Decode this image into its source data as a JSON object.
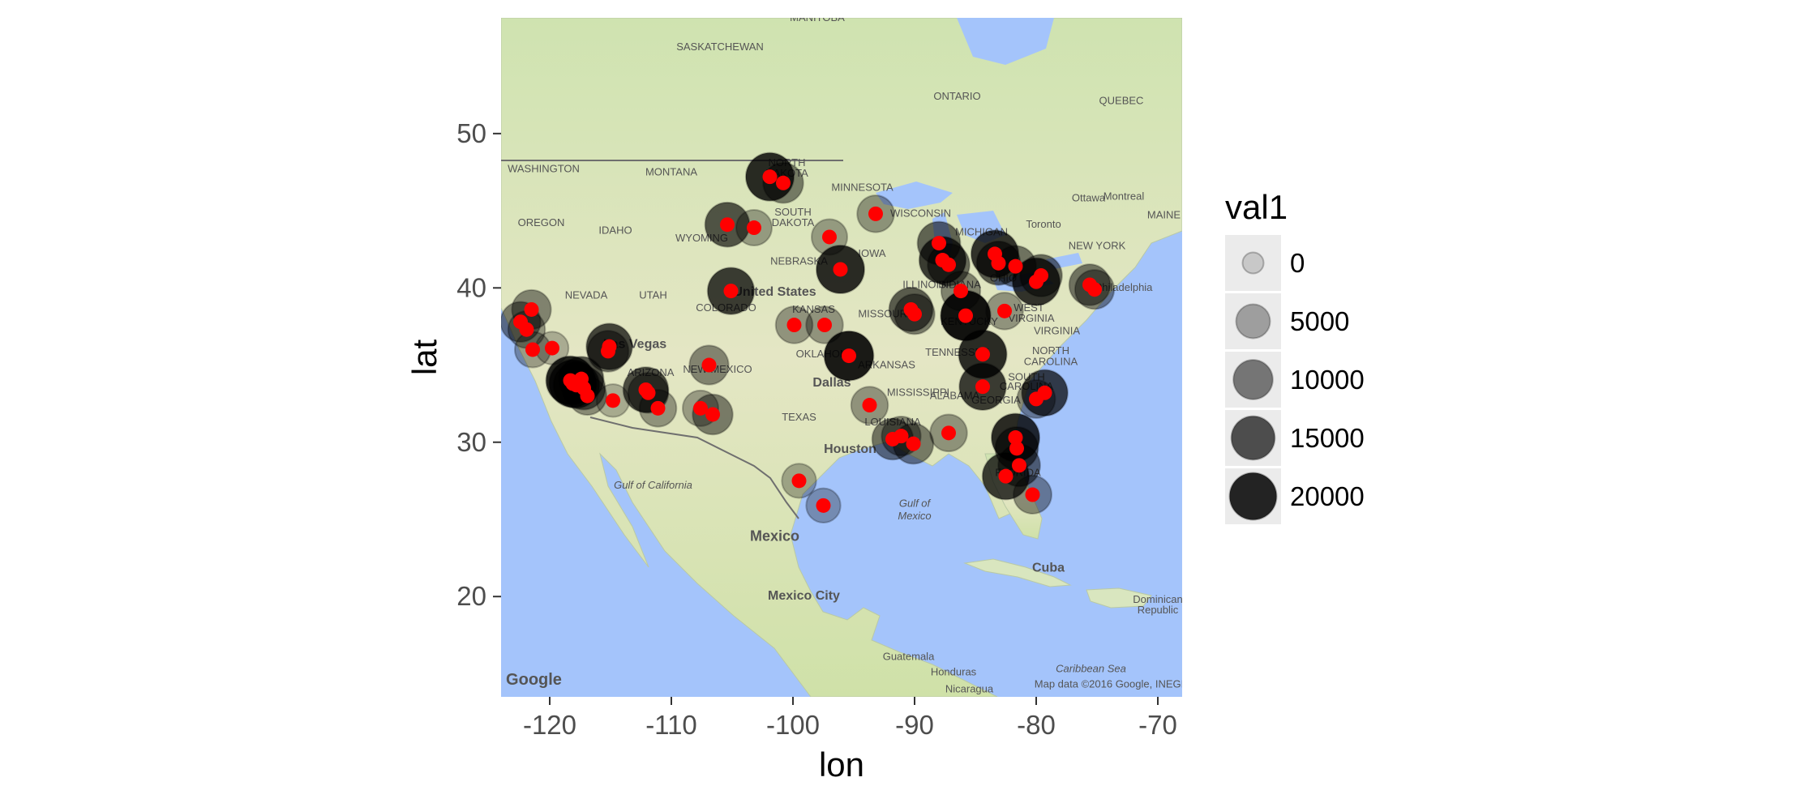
{
  "chart_data": {
    "type": "scatter",
    "title": "",
    "xlabel": "lon",
    "ylabel": "lat",
    "xlim": [
      -124,
      -68
    ],
    "ylim": [
      13.5,
      57.5
    ],
    "x_ticks": [
      -120,
      -110,
      -100,
      -90,
      -80,
      -70
    ],
    "x_tick_labels": [
      "-120",
      "-110",
      "-100",
      "-90",
      "-80",
      "-70"
    ],
    "y_ticks": [
      20,
      30,
      40,
      50
    ],
    "y_tick_labels": [
      "20",
      "30",
      "40",
      "50"
    ],
    "grid": false,
    "background": "Google terrain basemap",
    "legend": {
      "title": "val1",
      "placement": "right",
      "entries": [
        {
          "label": "0",
          "value": 0
        },
        {
          "label": "5000",
          "value": 5000
        },
        {
          "label": "10000",
          "value": 10000
        },
        {
          "label": "15000",
          "value": 15000
        },
        {
          "label": "20000",
          "value": 20000
        }
      ]
    },
    "marker_color_large": "#000000",
    "marker_color_point": "#ff0000",
    "points": [
      {
        "lon": -122.4,
        "lat": 37.8,
        "val1": 9000
      },
      {
        "lon": -121.9,
        "lat": 37.3,
        "val1": 6000
      },
      {
        "lon": -121.5,
        "lat": 38.6,
        "val1": 8000
      },
      {
        "lon": -121.4,
        "lat": 36.0,
        "val1": 5000
      },
      {
        "lon": -119.8,
        "lat": 36.1,
        "val1": 3000
      },
      {
        "lon": -118.3,
        "lat": 34.0,
        "val1": 20000
      },
      {
        "lon": -118.1,
        "lat": 33.8,
        "val1": 18000
      },
      {
        "lon": -117.8,
        "lat": 33.7,
        "val1": 16000
      },
      {
        "lon": -117.4,
        "lat": 34.1,
        "val1": 14000
      },
      {
        "lon": -117.2,
        "lat": 33.5,
        "val1": 12000
      },
      {
        "lon": -116.9,
        "lat": 33.0,
        "val1": 7000
      },
      {
        "lon": -115.1,
        "lat": 36.2,
        "val1": 16000
      },
      {
        "lon": -115.2,
        "lat": 35.9,
        "val1": 10000
      },
      {
        "lon": -114.8,
        "lat": 32.7,
        "val1": 3000
      },
      {
        "lon": -112.1,
        "lat": 33.4,
        "val1": 15000
      },
      {
        "lon": -111.9,
        "lat": 33.2,
        "val1": 9000
      },
      {
        "lon": -111.1,
        "lat": 32.2,
        "val1": 6000
      },
      {
        "lon": -107.6,
        "lat": 32.2,
        "val1": 5000
      },
      {
        "lon": -106.6,
        "lat": 31.8,
        "val1": 9000
      },
      {
        "lon": -106.9,
        "lat": 35.0,
        "val1": 8000
      },
      {
        "lon": -105.1,
        "lat": 39.8,
        "val1": 17000
      },
      {
        "lon": -105.4,
        "lat": 44.1,
        "val1": 14000
      },
      {
        "lon": -103.2,
        "lat": 43.9,
        "val1": 5000
      },
      {
        "lon": -101.9,
        "lat": 47.2,
        "val1": 19000
      },
      {
        "lon": -100.8,
        "lat": 46.8,
        "val1": 9000
      },
      {
        "lon": -99.9,
        "lat": 37.6,
        "val1": 6000
      },
      {
        "lon": -97.4,
        "lat": 37.6,
        "val1": 6000
      },
      {
        "lon": -99.5,
        "lat": 27.5,
        "val1": 4000
      },
      {
        "lon": -97.5,
        "lat": 25.9,
        "val1": 4000
      },
      {
        "lon": -97.0,
        "lat": 43.3,
        "val1": 5000
      },
      {
        "lon": -96.1,
        "lat": 41.2,
        "val1": 19000
      },
      {
        "lon": -95.4,
        "lat": 35.6,
        "val1": 21000
      },
      {
        "lon": -93.2,
        "lat": 44.8,
        "val1": 6000
      },
      {
        "lon": -93.7,
        "lat": 32.4,
        "val1": 6000
      },
      {
        "lon": -91.8,
        "lat": 30.2,
        "val1": 10000
      },
      {
        "lon": -91.1,
        "lat": 30.4,
        "val1": 8000
      },
      {
        "lon": -90.1,
        "lat": 29.9,
        "val1": 9000
      },
      {
        "lon": -90.3,
        "lat": 38.6,
        "val1": 13000
      },
      {
        "lon": -90.0,
        "lat": 38.3,
        "val1": 9000
      },
      {
        "lon": -88.0,
        "lat": 42.9,
        "val1": 12000
      },
      {
        "lon": -87.7,
        "lat": 41.8,
        "val1": 17000
      },
      {
        "lon": -87.2,
        "lat": 41.5,
        "val1": 11000
      },
      {
        "lon": -87.2,
        "lat": 30.6,
        "val1": 6000
      },
      {
        "lon": -86.2,
        "lat": 39.8,
        "val1": 8000
      },
      {
        "lon": -85.8,
        "lat": 38.2,
        "val1": 22000
      },
      {
        "lon": -84.4,
        "lat": 35.7,
        "val1": 19000
      },
      {
        "lon": -84.4,
        "lat": 33.6,
        "val1": 17000
      },
      {
        "lon": -83.4,
        "lat": 42.2,
        "val1": 18000
      },
      {
        "lon": -83.1,
        "lat": 41.6,
        "val1": 13000
      },
      {
        "lon": -81.7,
        "lat": 41.4,
        "val1": 10000
      },
      {
        "lon": -82.6,
        "lat": 38.5,
        "val1": 6000
      },
      {
        "lon": -81.7,
        "lat": 30.3,
        "val1": 19000
      },
      {
        "lon": -81.6,
        "lat": 29.6,
        "val1": 12000
      },
      {
        "lon": -82.5,
        "lat": 27.8,
        "val1": 17000
      },
      {
        "lon": -81.4,
        "lat": 28.5,
        "val1": 11000
      },
      {
        "lon": -80.3,
        "lat": 26.6,
        "val1": 7000
      },
      {
        "lon": -80.0,
        "lat": 40.4,
        "val1": 18000
      },
      {
        "lon": -79.6,
        "lat": 40.8,
        "val1": 11000
      },
      {
        "lon": -79.3,
        "lat": 33.2,
        "val1": 16000
      },
      {
        "lon": -80.0,
        "lat": 32.8,
        "val1": 7000
      },
      {
        "lon": -75.6,
        "lat": 40.2,
        "val1": 10000
      },
      {
        "lon": -75.2,
        "lat": 39.9,
        "val1": 8000
      }
    ]
  },
  "map": {
    "labels": [
      {
        "text": "MANITOBA",
        "lon": -98.0,
        "lat": 57.3,
        "size": "small"
      },
      {
        "text": "SASKATCHEWAN",
        "lon": -106.0,
        "lat": 55.4,
        "size": "small"
      },
      {
        "text": "ONTARIO",
        "lon": -86.5,
        "lat": 52.2,
        "size": "small"
      },
      {
        "text": "QUEBEC",
        "lon": -73.0,
        "lat": 51.9,
        "size": "small"
      },
      {
        "text": "WASHINGTON",
        "lon": -120.5,
        "lat": 47.5,
        "size": "small"
      },
      {
        "text": "MONTANA",
        "lon": -110.0,
        "lat": 47.3,
        "size": "small"
      },
      {
        "text": "NORTH",
        "lon": -100.5,
        "lat": 47.9,
        "size": "small"
      },
      {
        "text": "DAKOTA",
        "lon": -100.5,
        "lat": 47.2,
        "size": "small"
      },
      {
        "text": "MINNESOTA",
        "lon": -94.3,
        "lat": 46.3,
        "size": "small"
      },
      {
        "text": "OREGON",
        "lon": -120.7,
        "lat": 44.0,
        "size": "small"
      },
      {
        "text": "IDAHO",
        "lon": -114.6,
        "lat": 43.5,
        "size": "small"
      },
      {
        "text": "WYOMING",
        "lon": -107.5,
        "lat": 43.0,
        "size": "small"
      },
      {
        "text": "SOUTH",
        "lon": -100.0,
        "lat": 44.7,
        "size": "small"
      },
      {
        "text": "DAKOTA",
        "lon": -100.0,
        "lat": 44.0,
        "size": "small"
      },
      {
        "text": "WISCONSIN",
        "lon": -89.5,
        "lat": 44.6,
        "size": "small"
      },
      {
        "text": "MICHIGAN",
        "lon": -84.5,
        "lat": 43.4,
        "size": "small"
      },
      {
        "text": "Ottawa",
        "lon": -75.7,
        "lat": 45.6,
        "size": "small"
      },
      {
        "text": "Montreal",
        "lon": -72.8,
        "lat": 45.7,
        "size": "small"
      },
      {
        "text": "Toronto",
        "lon": -79.4,
        "lat": 43.9,
        "size": "small"
      },
      {
        "text": "MAINE",
        "lon": -69.5,
        "lat": 44.5,
        "size": "small"
      },
      {
        "text": "NEBRASKA",
        "lon": -99.5,
        "lat": 41.5,
        "size": "small"
      },
      {
        "text": "IOWA",
        "lon": -93.5,
        "lat": 42.0,
        "size": "small"
      },
      {
        "text": "NEW YORK",
        "lon": -75.0,
        "lat": 42.5,
        "size": "small"
      },
      {
        "text": "NEVADA",
        "lon": -117.0,
        "lat": 39.3,
        "size": "small"
      },
      {
        "text": "UTAH",
        "lon": -111.5,
        "lat": 39.3,
        "size": "small"
      },
      {
        "text": "United States",
        "lon": -101.5,
        "lat": 39.5,
        "size": "city"
      },
      {
        "text": "COLORADO",
        "lon": -105.5,
        "lat": 38.5,
        "size": "small"
      },
      {
        "text": "KANSAS",
        "lon": -98.3,
        "lat": 38.4,
        "size": "small"
      },
      {
        "text": "ILLINOIS",
        "lon": -89.2,
        "lat": 40.0,
        "size": "small"
      },
      {
        "text": "INDIANA",
        "lon": -86.3,
        "lat": 40.0,
        "size": "small"
      },
      {
        "text": "OHIO",
        "lon": -82.7,
        "lat": 40.4,
        "size": "small"
      },
      {
        "text": "Philadelphia",
        "lon": -72.8,
        "lat": 39.8,
        "size": "small"
      },
      {
        "text": "MISSOURI",
        "lon": -92.5,
        "lat": 38.1,
        "size": "small"
      },
      {
        "text": "KENTUCKY",
        "lon": -85.5,
        "lat": 37.6,
        "size": "small"
      },
      {
        "text": "WEST",
        "lon": -80.6,
        "lat": 38.5,
        "size": "small"
      },
      {
        "text": "VIRGINIA",
        "lon": -80.4,
        "lat": 37.8,
        "size": "small"
      },
      {
        "text": "VIRGINIA",
        "lon": -78.3,
        "lat": 37.0,
        "size": "small"
      },
      {
        "text": "TENNESSEE",
        "lon": -86.5,
        "lat": 35.6,
        "size": "small"
      },
      {
        "text": "NORTH",
        "lon": -78.8,
        "lat": 35.7,
        "size": "small"
      },
      {
        "text": "CAROLINA",
        "lon": -78.8,
        "lat": 35.0,
        "size": "small"
      },
      {
        "text": "Las Vegas",
        "lon": -113.0,
        "lat": 36.1,
        "size": "city"
      },
      {
        "text": "ARIZONA",
        "lon": -111.7,
        "lat": 34.3,
        "size": "small"
      },
      {
        "text": "NEW MEXICO",
        "lon": -106.2,
        "lat": 34.5,
        "size": "small"
      },
      {
        "text": "OKLAHOMA",
        "lon": -97.3,
        "lat": 35.5,
        "size": "small"
      },
      {
        "text": "ARKANSAS",
        "lon": -92.3,
        "lat": 34.8,
        "size": "small"
      },
      {
        "text": "MISSISSIPPI",
        "lon": -89.7,
        "lat": 33.0,
        "size": "small"
      },
      {
        "text": "ALABAMA",
        "lon": -86.7,
        "lat": 32.8,
        "size": "small"
      },
      {
        "text": "GEORGIA",
        "lon": -83.3,
        "lat": 32.5,
        "size": "small"
      },
      {
        "text": "SOUTH",
        "lon": -80.8,
        "lat": 34.0,
        "size": "small"
      },
      {
        "text": "CAROLINA",
        "lon": -80.8,
        "lat": 33.4,
        "size": "small"
      },
      {
        "text": "Dallas",
        "lon": -96.8,
        "lat": 33.6,
        "size": "city"
      },
      {
        "text": "TEXAS",
        "lon": -99.5,
        "lat": 31.4,
        "size": "small"
      },
      {
        "text": "LOUISIANA",
        "lon": -91.8,
        "lat": 31.1,
        "size": "small"
      },
      {
        "text": "Houston",
        "lon": -95.3,
        "lat": 29.3,
        "size": "city"
      },
      {
        "text": "FLORIDA",
        "lon": -81.5,
        "lat": 27.8,
        "size": "small"
      },
      {
        "text": "Gulf of",
        "lon": -90.0,
        "lat": 25.8,
        "size": "water"
      },
      {
        "text": "Mexico",
        "lon": -90.0,
        "lat": 25.0,
        "size": "water"
      },
      {
        "text": "Mexico",
        "lon": -101.5,
        "lat": 23.6,
        "size": "country"
      },
      {
        "text": "Cuba",
        "lon": -79.0,
        "lat": 21.6,
        "size": "city"
      },
      {
        "text": "Mexico City",
        "lon": -99.1,
        "lat": 19.8,
        "size": "city"
      },
      {
        "text": "Dominican",
        "lon": -70.0,
        "lat": 19.6,
        "size": "small"
      },
      {
        "text": "Republic",
        "lon": -70.0,
        "lat": 18.9,
        "size": "small"
      },
      {
        "text": "Guatemala",
        "lon": -90.5,
        "lat": 15.9,
        "size": "small"
      },
      {
        "text": "Honduras",
        "lon": -86.8,
        "lat": 14.9,
        "size": "small"
      },
      {
        "text": "Caribbean Sea",
        "lon": -75.5,
        "lat": 15.1,
        "size": "water"
      },
      {
        "text": "Nicaragua",
        "lon": -85.5,
        "lat": 13.8,
        "size": "small"
      },
      {
        "text": "Gulf of California",
        "lon": -111.5,
        "lat": 27.0,
        "size": "water"
      },
      {
        "text": "Google",
        "lon": -121.3,
        "lat": 14.3,
        "size": "logo"
      },
      {
        "text": "Map data ©2016 Google, INEGI",
        "lon": -74.0,
        "lat": 14.1,
        "size": "small"
      }
    ]
  }
}
